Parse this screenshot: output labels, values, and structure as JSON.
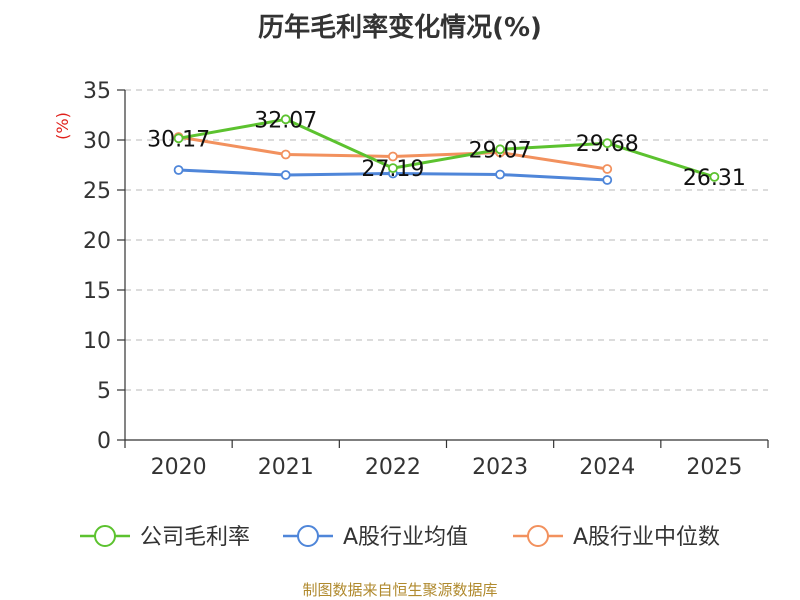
{
  "colors": {
    "company": "#5cc22f",
    "industry_avg": "#4f86d9",
    "industry_median": "#f2915e",
    "grid": "#c8c8c8",
    "axis": "#333333",
    "unit": "#e0201b",
    "source": "#b08a2e"
  },
  "source_text": "制图数据来自恒生聚源数据库",
  "chart_data": {
    "type": "line",
    "title": "历年毛利率变化情况(%)",
    "ylabel": "(%)",
    "xlabel": "",
    "categories": [
      "2020",
      "2021",
      "2022",
      "2023",
      "2024",
      "2025"
    ],
    "ylim": [
      0,
      35
    ],
    "yticks": [
      0,
      5,
      10,
      15,
      20,
      25,
      30,
      35
    ],
    "grid": true,
    "legend_position": "bottom",
    "series": [
      {
        "name": "公司毛利率",
        "values": [
          30.17,
          32.07,
          27.19,
          29.07,
          29.68,
          26.31
        ],
        "labels": [
          "30.17",
          "32.07",
          "27.19",
          "29.07",
          "29.68",
          "26.31"
        ]
      },
      {
        "name": "A股行业均值",
        "values": [
          27.0,
          26.5,
          26.65,
          26.55,
          26.0,
          null
        ]
      },
      {
        "name": "A股行业中位数",
        "values": [
          30.3,
          28.55,
          28.35,
          28.75,
          27.1,
          null
        ]
      }
    ]
  }
}
